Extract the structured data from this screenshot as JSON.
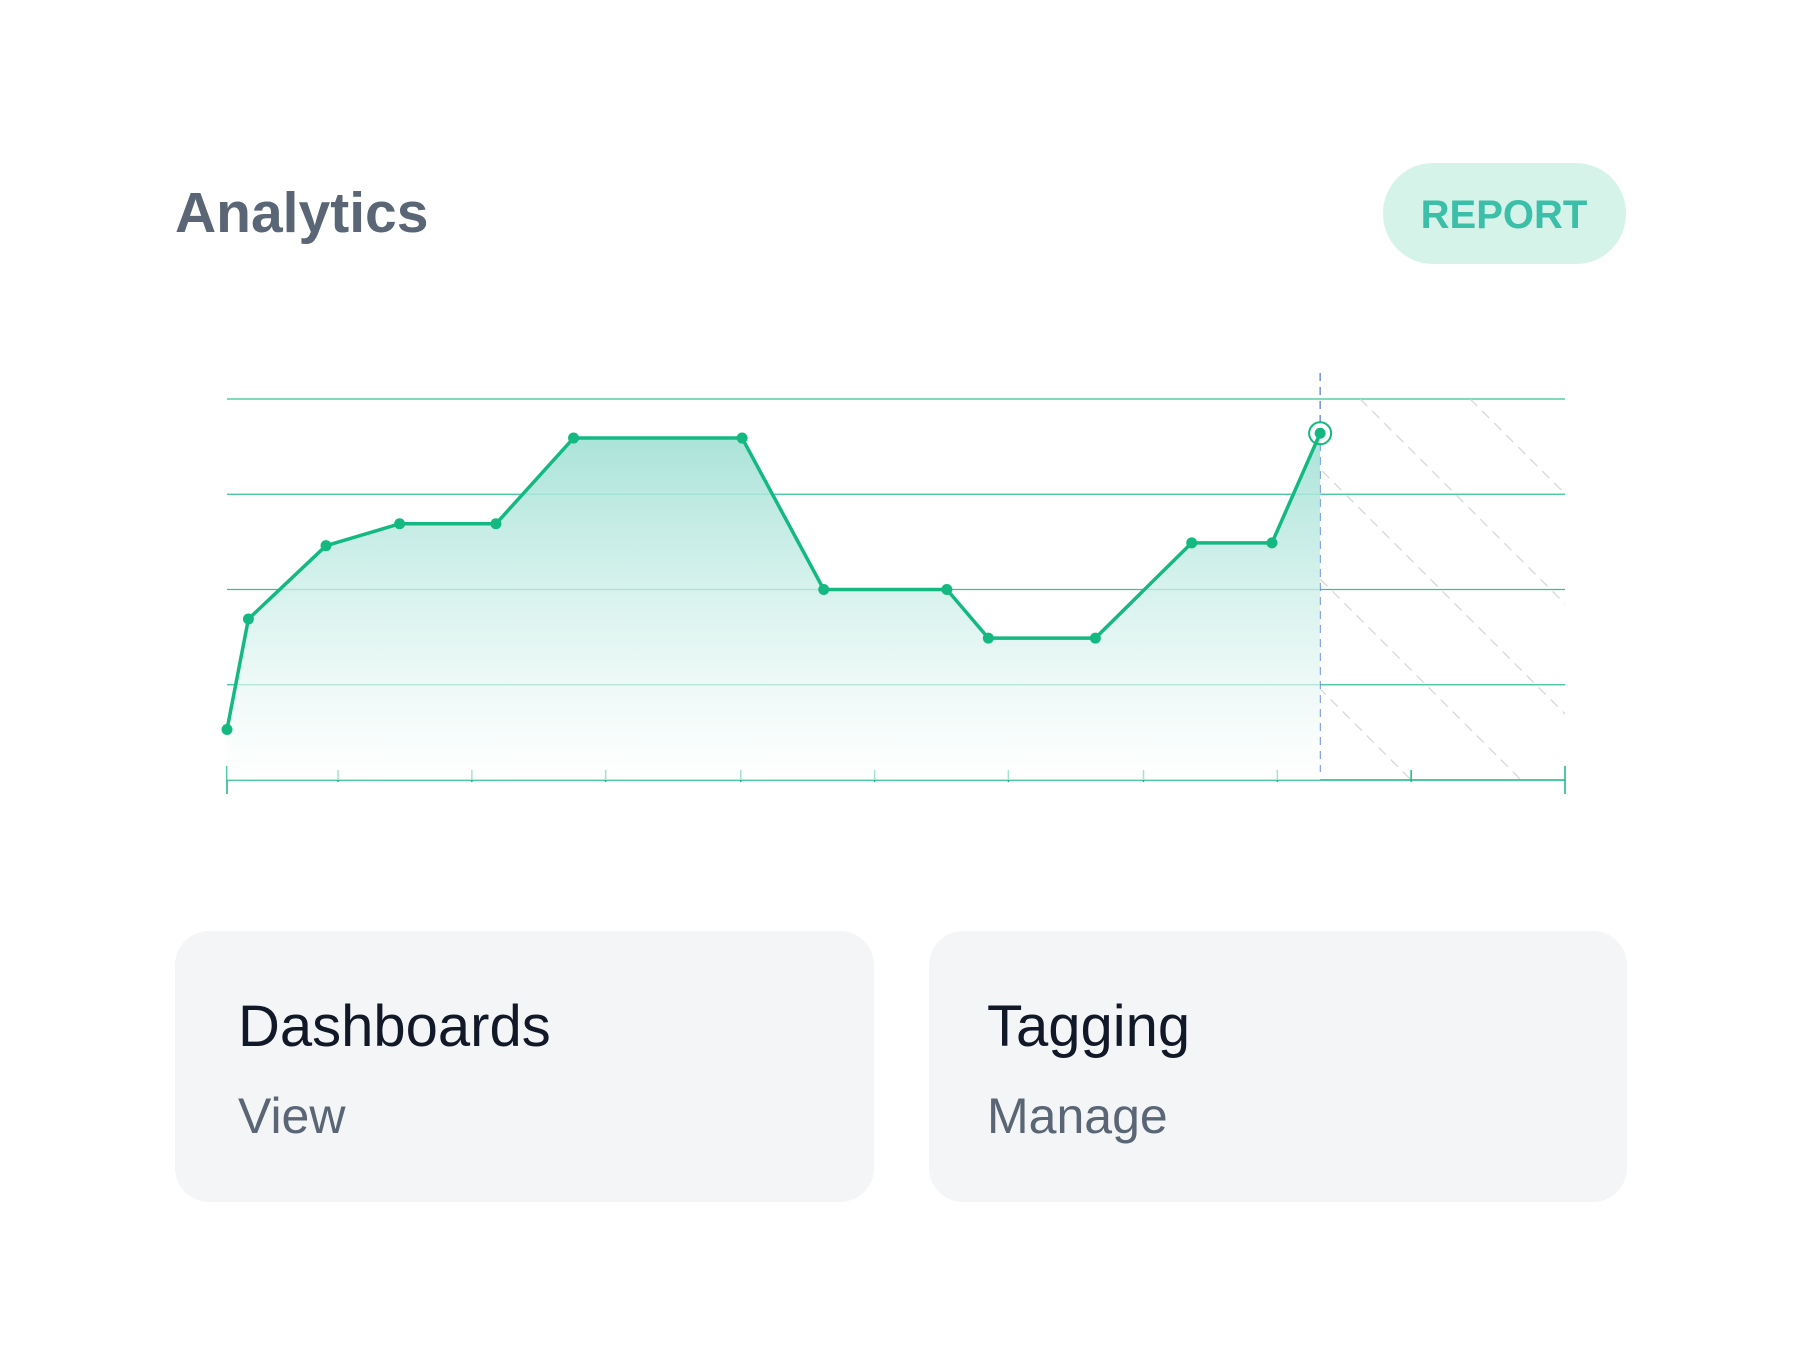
{
  "header": {
    "title": "Analytics",
    "button": "REPORT"
  },
  "chart_data": {
    "type": "line",
    "color": "#13b981",
    "x": [
      0,
      1.6,
      7.4,
      12.9,
      20.1,
      25.9,
      38.5,
      44.6,
      53.8,
      56.9,
      64.9,
      72.1,
      78.1,
      81.7
    ],
    "values": [
      0.53,
      1.69,
      2.46,
      2.69,
      2.69,
      3.59,
      3.59,
      2.0,
      2.0,
      1.49,
      1.49,
      2.49,
      2.49,
      3.64
    ],
    "xlim": [
      0,
      100
    ],
    "xticks": [
      0,
      8.3,
      18.3,
      28.3,
      38.4,
      48.4,
      58.4,
      68.5,
      78.5,
      88.5,
      100
    ],
    "ylim": [
      0,
      4
    ],
    "yticks": [
      1,
      2,
      3,
      4
    ],
    "grid": true
  },
  "cards": [
    {
      "title": "Dashboards",
      "action": "View"
    },
    {
      "title": "Tagging",
      "action": "Manage"
    }
  ]
}
